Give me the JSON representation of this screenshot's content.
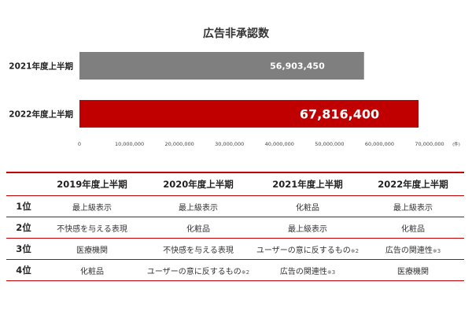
{
  "chart_data": {
    "type": "bar",
    "orientation": "horizontal",
    "title": "広告非承認数",
    "categories": [
      "2021年度上半期",
      "2022年度上半期"
    ],
    "values": [
      56903450,
      67816400
    ],
    "value_labels": [
      "56,903,450",
      "67,816,400"
    ],
    "colors": [
      "#7f7f7f",
      "#c00000"
    ],
    "xlim": [
      0,
      70000000
    ],
    "x_ticks": [
      0,
      10000000,
      20000000,
      30000000,
      40000000,
      50000000,
      60000000,
      70000000
    ],
    "x_tick_labels": [
      "0",
      "10,000,000",
      "20,000,000",
      "30,000,000",
      "40,000,000",
      "50,000,000",
      "60,000,000",
      "70,000,000"
    ],
    "unit": "(件)",
    "grid": false
  },
  "ranking_table": {
    "headers": [
      "",
      "2019年度上半期",
      "2020年度上半期",
      "2021年度上半期",
      "2022年度上半期"
    ],
    "rows": [
      {
        "rank": "1位",
        "cells": [
          {
            "text": "最上級表示",
            "note": ""
          },
          {
            "text": "最上級表示",
            "note": ""
          },
          {
            "text": "化粧品",
            "note": ""
          },
          {
            "text": "最上級表示",
            "note": ""
          }
        ]
      },
      {
        "rank": "2位",
        "cells": [
          {
            "text": "不快感を与える表現",
            "note": ""
          },
          {
            "text": "化粧品",
            "note": ""
          },
          {
            "text": "最上級表示",
            "note": ""
          },
          {
            "text": "化粧品",
            "note": ""
          }
        ]
      },
      {
        "rank": "3位",
        "cells": [
          {
            "text": "医療機関",
            "note": ""
          },
          {
            "text": "不快感を与える表現",
            "note": ""
          },
          {
            "text": "ユーザーの意に反するもの",
            "note": "※2"
          },
          {
            "text": "広告の関連性",
            "note": "※3"
          }
        ]
      },
      {
        "rank": "4位",
        "cells": [
          {
            "text": "化粧品",
            "note": ""
          },
          {
            "text": "ユーザーの意に反するもの",
            "note": "※2"
          },
          {
            "text": "広告の関連性",
            "note": "※3"
          },
          {
            "text": "医療機関",
            "note": ""
          }
        ]
      }
    ]
  }
}
